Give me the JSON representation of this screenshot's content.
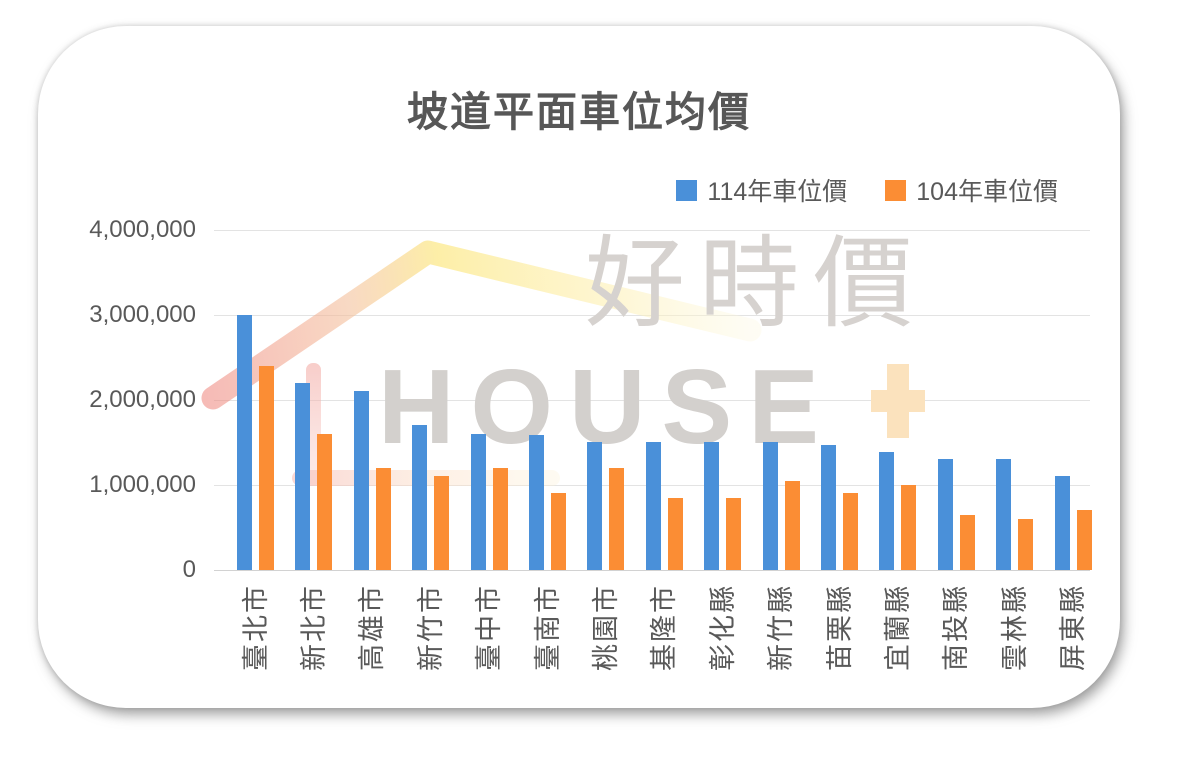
{
  "title": "坡道平面車位均價",
  "legend": [
    {
      "label": "114年車位價",
      "color": "#4a90d9"
    },
    {
      "label": "104年車位價",
      "color": "#fb8d34"
    }
  ],
  "watermark": {
    "cjk": "好時價",
    "latin": "HOUSE",
    "plus": "+",
    "plus_color": "#fbe2bd",
    "roof_red": "#ee837b",
    "roof_yellow": "#fce98a",
    "gray": "#d3d0cd"
  },
  "colors": {
    "text": "#595959",
    "title": "#575757",
    "gridline": "#e3e3e3",
    "axis_line": "#d2d2d2",
    "series_114": "#4a90d9",
    "series_104": "#fb8d34"
  },
  "chart_data": {
    "type": "bar",
    "title": "坡道平面車位均價",
    "categories": [
      "臺北市",
      "新北市",
      "高雄市",
      "新竹市",
      "臺中市",
      "臺南市",
      "桃園市",
      "基隆市",
      "彰化縣",
      "新竹縣",
      "苗栗縣",
      "宜蘭縣",
      "南投縣",
      "雲林縣",
      "屏東縣"
    ],
    "series": [
      {
        "name": "114年車位價",
        "color": "#4a90d9",
        "values": [
          3000000,
          2200000,
          2100000,
          1700000,
          1600000,
          1590000,
          1500000,
          1500000,
          1500000,
          1500000,
          1470000,
          1390000,
          1300000,
          1300000,
          1100000
        ]
      },
      {
        "name": "104年車位價",
        "color": "#fb8d34",
        "values": [
          2400000,
          1600000,
          1200000,
          1100000,
          1200000,
          900000,
          1200000,
          850000,
          850000,
          1050000,
          900000,
          1000000,
          650000,
          600000,
          700000
        ]
      }
    ],
    "xlabel": "",
    "ylabel": "",
    "ylim": [
      0,
      4000000
    ],
    "yticks": [
      "4,000,000",
      "3,000,000",
      "2,000,000",
      "1,000,000",
      "0"
    ],
    "grid": "horizontal",
    "legend_position": "top-right"
  }
}
